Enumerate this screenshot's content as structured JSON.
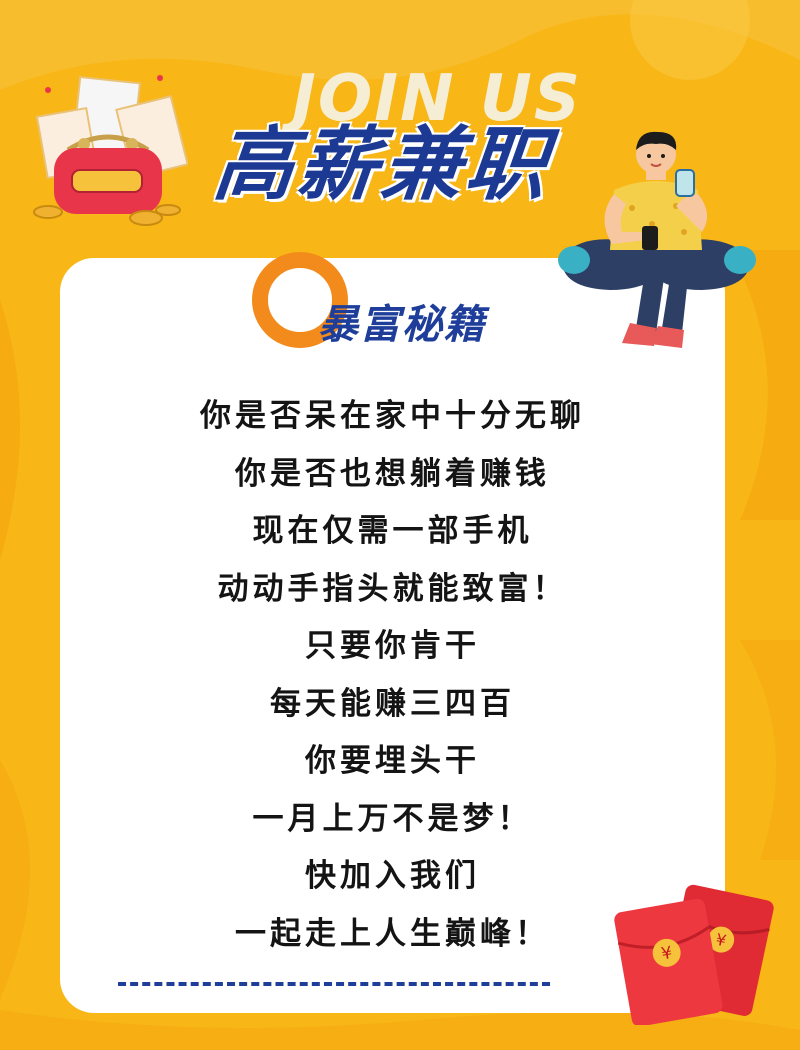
{
  "header": {
    "watermark": "JOIN US",
    "title": "高薪兼职"
  },
  "card": {
    "subtitle": "暴富秘籍",
    "lines": [
      "你是否呆在家中十分无聊",
      "你是否也想躺着赚钱",
      "现在仅需一部手机",
      "动动手指头就能致富！",
      "只要你肯干",
      "每天能赚三四百",
      "你要埋头干",
      "一月上万不是梦！",
      "快加入我们",
      "一起走上人生巅峰！"
    ]
  },
  "icons": {
    "wallet": "wallet-icon",
    "person": "person-with-phone-icon",
    "red_envelopes": "red-envelope-icon"
  },
  "colors": {
    "background": "#f8b617",
    "title": "#1c3a93",
    "ring": "#f28b1c",
    "envelope": "#e8353d"
  }
}
